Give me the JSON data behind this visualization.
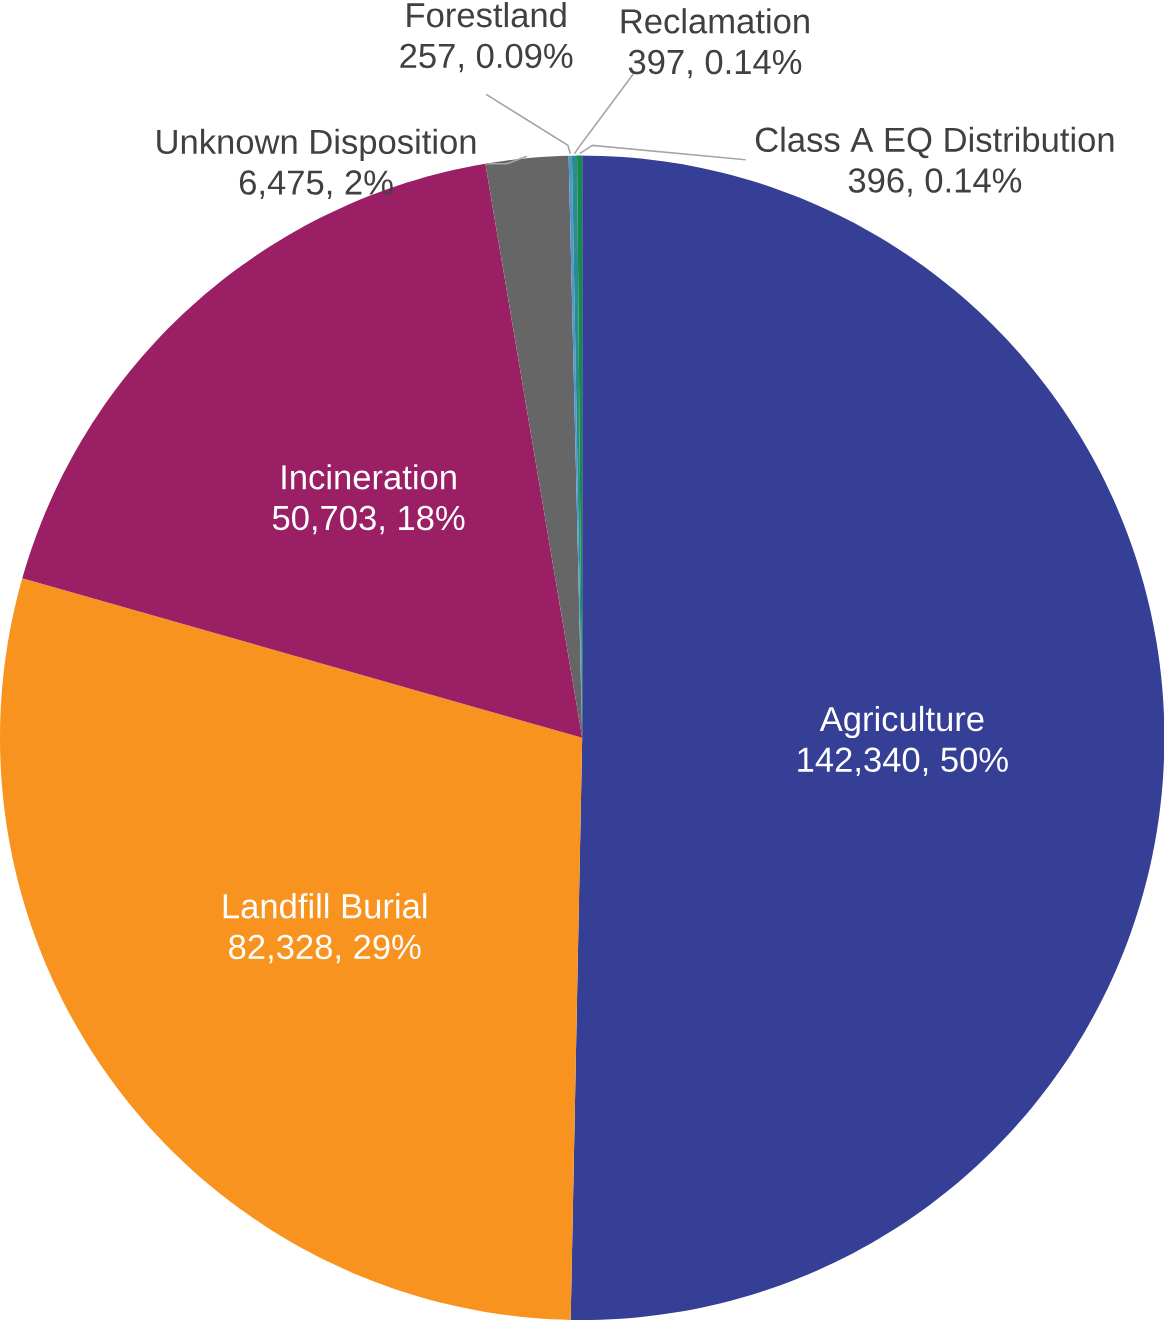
{
  "chart_data": {
    "type": "pie",
    "categories": [
      "Agriculture",
      "Landfill Burial",
      "Incineration",
      "Unknown Disposition",
      "Forestland",
      "Reclamation",
      "Class A EQ Distribution"
    ],
    "values": [
      142340,
      82328,
      50703,
      6475,
      257,
      397,
      396
    ],
    "colors": [
      "#353f96",
      "#f7931e",
      "#9b1f65",
      "#666666",
      "#4f97cf",
      "#2a8c8c",
      "#168a4c"
    ],
    "value_labels": [
      "142,340, 50%",
      "82,328, 29%",
      "50,703, 18%",
      "6,475, 2%",
      "257, 0.09%",
      "397, 0.14%",
      "396, 0.14%"
    ]
  }
}
